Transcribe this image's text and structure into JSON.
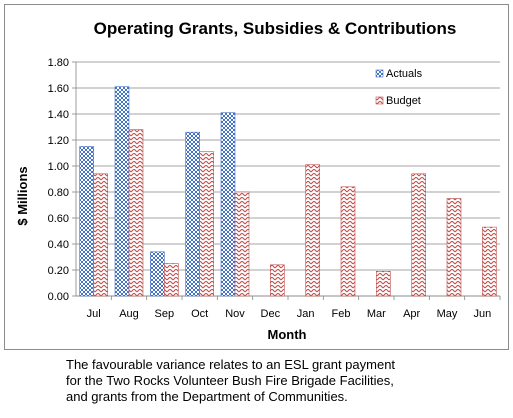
{
  "chart_data": {
    "type": "bar",
    "title": "Operating Grants, Subsidies & Contributions",
    "xlabel": "Month",
    "ylabel": "$ Millions",
    "categories": [
      "Jul",
      "Aug",
      "Sep",
      "Oct",
      "Nov",
      "Dec",
      "Jan",
      "Feb",
      "Mar",
      "Apr",
      "May",
      "Jun"
    ],
    "series": [
      {
        "name": "Actuals",
        "values": [
          1.15,
          1.61,
          0.34,
          1.26,
          1.41,
          null,
          null,
          null,
          null,
          null,
          null,
          null
        ],
        "color": "#4472c4",
        "pattern": "checkerboard"
      },
      {
        "name": "Budget",
        "values": [
          0.94,
          1.28,
          0.25,
          1.11,
          0.8,
          0.24,
          1.01,
          0.84,
          0.19,
          0.94,
          0.75,
          0.53
        ],
        "color": "#c0504d",
        "pattern": "zigzag"
      }
    ],
    "ylim": [
      0,
      1.8
    ],
    "yticks": [
      "0.00",
      "0.20",
      "0.40",
      "0.60",
      "0.80",
      "1.00",
      "1.20",
      "1.40",
      "1.60",
      "1.80"
    ],
    "grid": true,
    "legend_position": "top-right"
  },
  "caption": {
    "lines": [
      "The favourable variance relates to  an ESL grant payment",
      "for the Two Rocks Volunteer Bush Fire Brigade Facilities,",
      "and grants from the Department of Communities."
    ]
  }
}
